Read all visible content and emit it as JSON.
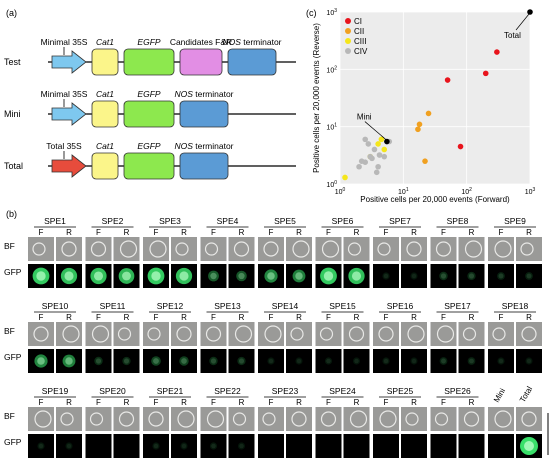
{
  "panel_a": {
    "label": "(a)",
    "rows": [
      {
        "name": "Test",
        "promoter": "Minimal 35S",
        "arrow_color": "#7ec8ef",
        "boxes": [
          {
            "label": "Cat1",
            "italic": true,
            "color": "#fbf58a"
          },
          {
            "label": "EGFP",
            "italic": true,
            "color": "#8de84e"
          },
          {
            "label": "Candidates F&R",
            "italic": false,
            "color": "#e28ee4"
          },
          {
            "label": "NOS terminator",
            "italic": "partial",
            "color": "#5b9bd5"
          }
        ]
      },
      {
        "name": "Mini",
        "promoter": "Minimal 35S",
        "arrow_color": "#7ec8ef",
        "boxes": [
          {
            "label": "Cat1",
            "italic": true,
            "color": "#fbf58a"
          },
          {
            "label": "EGFP",
            "italic": true,
            "color": "#8de84e"
          },
          {
            "label": "NOS terminator",
            "italic": "partial",
            "color": "#5b9bd5"
          }
        ]
      },
      {
        "name": "Total",
        "promoter": "Total 35S",
        "arrow_color": "#e74c3c",
        "boxes": [
          {
            "label": "Cat1",
            "italic": true,
            "color": "#fbf58a"
          },
          {
            "label": "EGFP",
            "italic": true,
            "color": "#8de84e"
          },
          {
            "label": "NOS terminator",
            "italic": "partial",
            "color": "#5b9bd5"
          }
        ]
      }
    ]
  },
  "panel_c": {
    "label": "(c)",
    "chart_data": {
      "type": "scatter",
      "xlabel": "Positive cells per 20,000 events (Forward)",
      "ylabel": "Positive cells per 20,000 events (Reverse)",
      "xscale": "log",
      "yscale": "log",
      "xlim": [
        1,
        1000
      ],
      "ylim": [
        1,
        1000
      ],
      "x_ticks": [
        "10^0",
        "10^1",
        "10^2",
        "10^3"
      ],
      "y_ticks": [
        "10^0",
        "10^1",
        "10^2",
        "10^3"
      ],
      "legend": "top-left",
      "series": [
        {
          "name": "CI",
          "color": "#e8141c",
          "points": [
            [
              50,
              65
            ],
            [
              200,
              85
            ],
            [
              300,
              200
            ],
            [
              80,
              4.5
            ]
          ]
        },
        {
          "name": "CII",
          "color": "#f0a020",
          "points": [
            [
              25,
              17
            ],
            [
              18,
              11
            ],
            [
              17,
              9
            ],
            [
              22,
              2.5
            ]
          ]
        },
        {
          "name": "CIII",
          "color": "#f5e61a",
          "points": [
            [
              1.2,
              1.3
            ],
            [
              4,
              5
            ],
            [
              5,
              4
            ],
            [
              3,
              3
            ],
            [
              4.5,
              6
            ]
          ]
        },
        {
          "name": "CIV",
          "color": "#b8b8b8",
          "points": [
            [
              2,
              2
            ],
            [
              2.5,
              6
            ],
            [
              3,
              3
            ],
            [
              2.2,
              2.5
            ],
            [
              4,
              2
            ],
            [
              3.5,
              4
            ],
            [
              2.8,
              5
            ],
            [
              5,
              3
            ],
            [
              6,
              5.5
            ],
            [
              4.2,
              3.2
            ],
            [
              2.5,
              2.4
            ],
            [
              3.2,
              2.8
            ],
            [
              3.8,
              1.6
            ]
          ]
        }
      ],
      "highlights": [
        {
          "name": "Mini",
          "x": 5.5,
          "y": 5.5
        },
        {
          "name": "Total",
          "x": 1000,
          "y": 1000
        }
      ]
    }
  },
  "panel_b": {
    "label": "(b)",
    "rows": [
      [
        "SPE1",
        "SPE2",
        "SPE3",
        "SPE4",
        "SPE5",
        "SPE6",
        "SPE7",
        "SPE8",
        "SPE9"
      ],
      [
        "SPE10",
        "SPE11",
        "SPE12",
        "SPE13",
        "SPE14",
        "SPE15",
        "SPE16",
        "SPE17",
        "SPE18"
      ],
      [
        "SPE19",
        "SPE20",
        "SPE21",
        "SPE22",
        "SPE23",
        "SPE24",
        "SPE25",
        "SPE26"
      ]
    ],
    "f_label": "F",
    "r_label": "R",
    "bf_label": "BF",
    "gfp_label": "GFP",
    "control_labels": [
      "Mini",
      "Total"
    ],
    "gfp_levels": [
      [
        0.9,
        0.85,
        0.9,
        0.4,
        0.6,
        0.9,
        0.1,
        0.2,
        0.15
      ],
      [
        0.6,
        0.2,
        0.3,
        0.2,
        0.1,
        0.1,
        0.1,
        0.15,
        0.1
      ],
      [
        0.1,
        0.05,
        0.1,
        0.1,
        0.05,
        0.05,
        0.05,
        0.05
      ]
    ]
  }
}
